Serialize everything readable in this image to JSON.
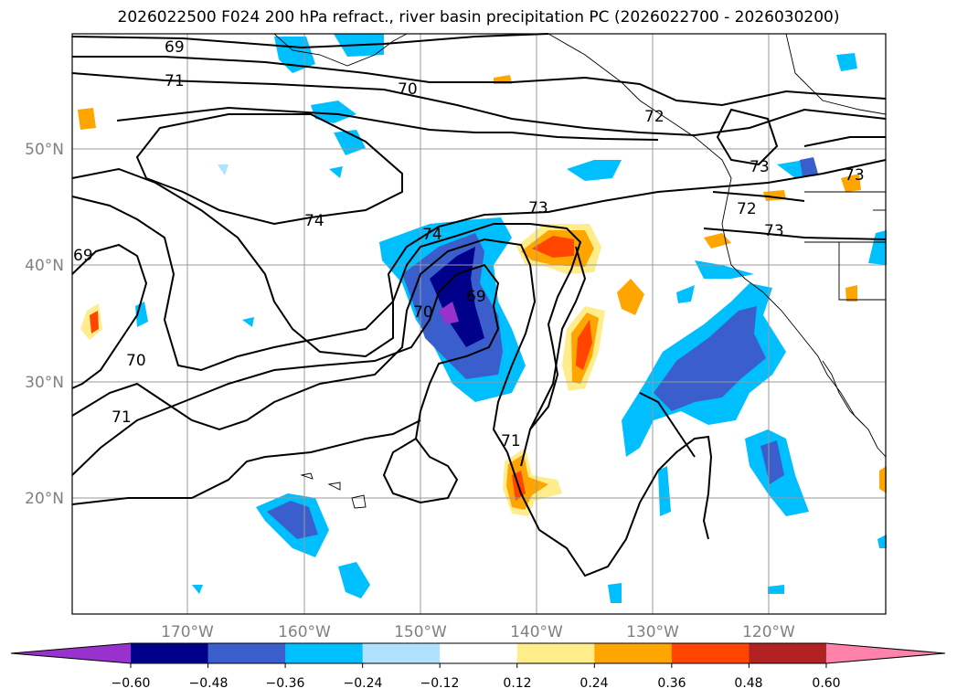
{
  "title": "2026022500 F024 200 hPa refract., river basin precipitation PC (2026022700 - 2026030200)",
  "map": {
    "lat_labels": [
      "50°N",
      "40°N",
      "30°N",
      "20°N"
    ],
    "lon_labels": [
      "170°W",
      "160°W",
      "150°W",
      "140°W",
      "130°W",
      "120°W"
    ],
    "contour_labels": [
      "69",
      "71",
      "70",
      "72",
      "73",
      "74",
      "73",
      "72",
      "73",
      "74",
      "69",
      "70",
      "71",
      "70",
      "71",
      "69",
      "73"
    ]
  },
  "colorbar": {
    "ticks": [
      "−0.60",
      "−0.48",
      "−0.36",
      "−0.24",
      "−0.12",
      "0.12",
      "0.24",
      "0.36",
      "0.48",
      "0.60"
    ],
    "colors": [
      "#9932cc",
      "#00008b",
      "#3a5fcd",
      "#00bfff",
      "#b0e2ff",
      "#ffffff",
      "#ffec8b",
      "#ffa500",
      "#ff4500",
      "#b22222",
      "#ff82ab"
    ]
  }
}
